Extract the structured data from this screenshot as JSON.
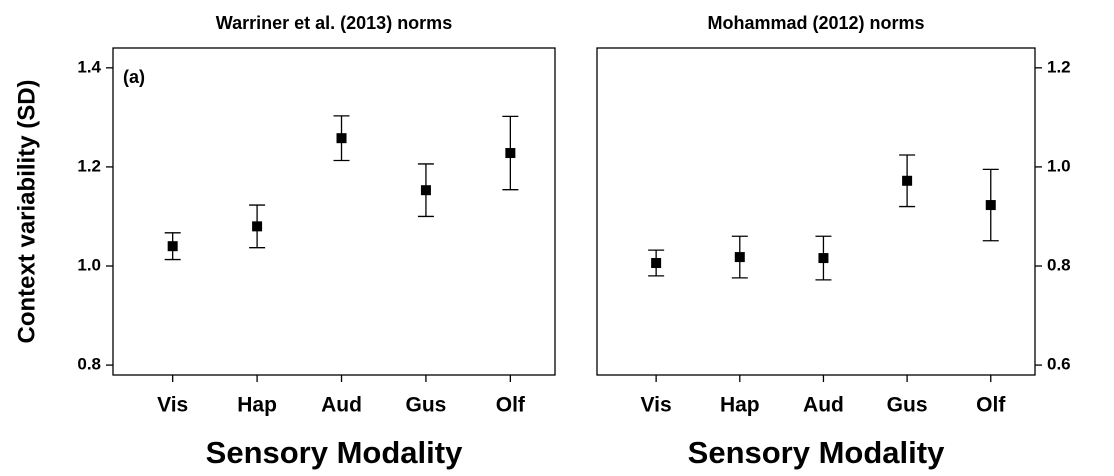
{
  "chart_data": [
    {
      "type": "errorbar",
      "title": "Warriner et al. (2013) norms",
      "annotation": "(a)",
      "y_label": "Context variability (SD)",
      "x_label": "Sensory Modality",
      "categories": [
        "Vis",
        "Hap",
        "Aud",
        "Gus",
        "Olf"
      ],
      "values": [
        1.04,
        1.08,
        1.258,
        1.153,
        1.228
      ],
      "errors": [
        0.027,
        0.043,
        0.045,
        0.053,
        0.074
      ],
      "color": "#000000",
      "y_axis_side": "left",
      "ylim": [
        0.78,
        1.44
      ],
      "yticks": [
        0.8,
        {
          "value": 1,
          "label": "1.0"
        },
        1.2,
        1.4
      ]
    },
    {
      "type": "errorbar",
      "title": "Mohammad (2012) norms",
      "x_label": "Sensory Modality",
      "categories": [
        "Vis",
        "Hap",
        "Aud",
        "Gus",
        "Olf"
      ],
      "values": [
        0.806,
        0.818,
        0.816,
        0.972,
        0.923
      ],
      "errors": [
        0.026,
        0.042,
        0.044,
        0.052,
        0.072
      ],
      "color": "#000000",
      "y_axis_side": "right",
      "ylim": [
        0.58,
        1.24
      ],
      "yticks": [
        0.6,
        0.8,
        {
          "value": 1,
          "label": "1.0"
        },
        1.2
      ]
    }
  ]
}
